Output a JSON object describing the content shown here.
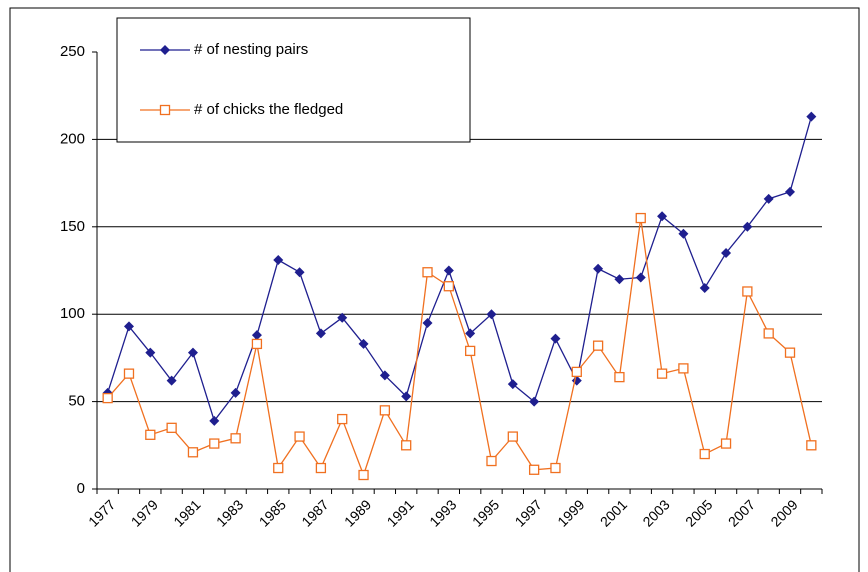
{
  "chart_data": {
    "type": "line",
    "categories": [
      "1977",
      null,
      "1979",
      null,
      "1981",
      null,
      "1983",
      null,
      "1985",
      null,
      "1987",
      null,
      "1989",
      null,
      "1991",
      null,
      "1993",
      null,
      "1995",
      null,
      "1997",
      null,
      "1999",
      null,
      "2001",
      null,
      "2003",
      null,
      "2005",
      null,
      "2007",
      null,
      "2009",
      null
    ],
    "series": [
      {
        "name": "# of nesting pairs",
        "color": "#1f1f8f",
        "marker": "diamond",
        "values": [
          55,
          93,
          78,
          62,
          78,
          39,
          55,
          88,
          131,
          124,
          89,
          98,
          83,
          65,
          53,
          95,
          125,
          89,
          100,
          60,
          50,
          86,
          62,
          126,
          120,
          121,
          156,
          146,
          115,
          135,
          150,
          166,
          170,
          213
        ]
      },
      {
        "name": "# of chicks the fledged",
        "color": "#f07020",
        "marker": "open-square",
        "values": [
          52,
          66,
          31,
          35,
          21,
          26,
          29,
          83,
          12,
          30,
          12,
          40,
          8,
          45,
          25,
          124,
          116,
          79,
          16,
          30,
          11,
          12,
          67,
          82,
          64,
          155,
          66,
          69,
          20,
          26,
          113,
          89,
          78,
          25
        ]
      }
    ],
    "ylim": [
      0,
      250
    ],
    "yticks": [
      0,
      50,
      100,
      150,
      200,
      250
    ],
    "grid": true
  }
}
